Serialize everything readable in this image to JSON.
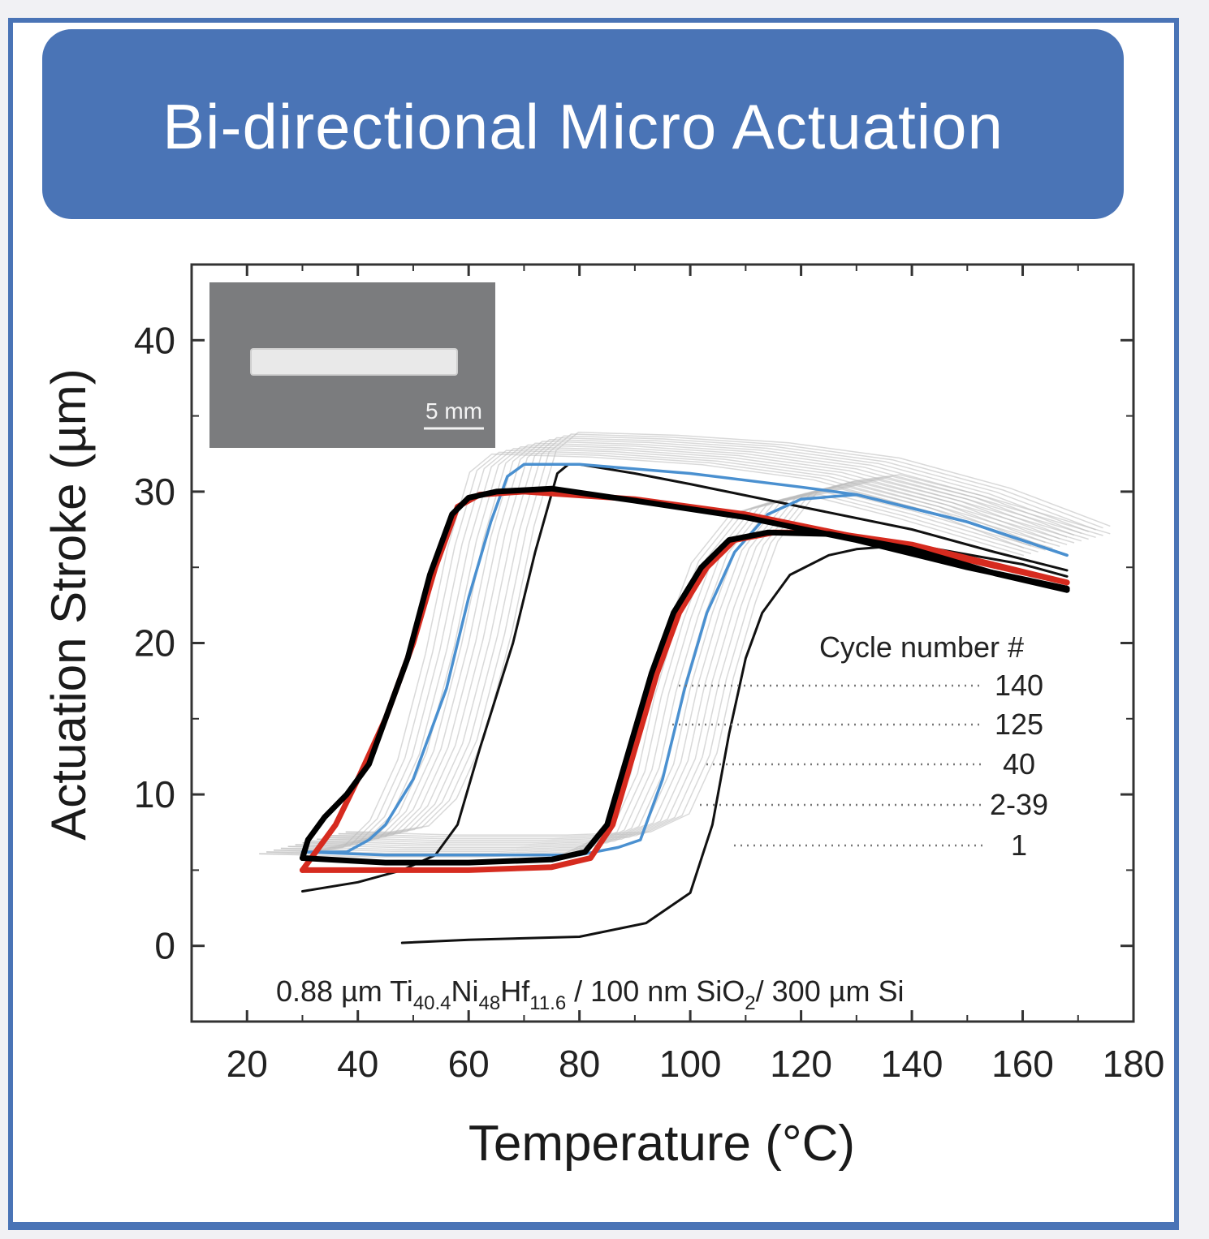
{
  "banner": {
    "title": "Bi-directional Micro Actuation"
  },
  "chart_data": {
    "type": "line",
    "title": "Bi-directional Micro Actuation",
    "xlabel": "Temperature (°C)",
    "ylabel": "Actuation Stroke (µm)",
    "xlim": [
      10,
      180
    ],
    "ylim": [
      -5,
      45
    ],
    "xticks": [
      20,
      40,
      60,
      80,
      100,
      120,
      140,
      160,
      180
    ],
    "yticks": [
      0,
      10,
      20,
      30,
      40
    ],
    "grid": false,
    "annotation": {
      "parts": [
        "0.88 µm Ti",
        "40.4",
        "Ni",
        "48",
        "Hf",
        "11.6",
        " / 100 nm SiO",
        "2",
        "/ 300 µm Si"
      ]
    },
    "legend": {
      "title": "Cycle number #",
      "position": "right",
      "entries": [
        "140",
        "125",
        "40",
        "2-39",
        "1"
      ]
    },
    "inset": {
      "scale_label": "5 mm"
    },
    "series": [
      {
        "name": "1",
        "color": "#111111",
        "heating": [
          [
            48,
            0.2
          ],
          [
            60,
            0.4
          ],
          [
            80,
            0.6
          ],
          [
            92,
            1.5
          ],
          [
            100,
            3.5
          ],
          [
            104,
            8
          ],
          [
            107,
            14
          ],
          [
            110,
            19
          ],
          [
            113,
            22
          ],
          [
            118,
            24.5
          ],
          [
            125,
            25.8
          ],
          [
            130,
            26.2
          ],
          [
            140,
            26.5
          ],
          [
            160,
            25.2
          ],
          [
            168,
            24.4
          ]
        ],
        "cooling": [
          [
            168,
            24.8
          ],
          [
            155,
            26
          ],
          [
            140,
            27.5
          ],
          [
            120,
            29
          ],
          [
            100,
            30.5
          ],
          [
            90,
            31.2
          ],
          [
            80,
            31.8
          ],
          [
            78,
            31.8
          ],
          [
            76,
            31.2
          ],
          [
            72,
            26
          ],
          [
            68,
            20
          ],
          [
            62,
            13
          ],
          [
            58,
            8
          ],
          [
            54,
            6
          ],
          [
            48,
            5
          ],
          [
            40,
            4.2
          ],
          [
            30,
            3.6
          ]
        ]
      },
      {
        "name": "2-39",
        "color": "#b9b9b9",
        "heating": [
          [
            30,
            6.8
          ],
          [
            50,
            6.6
          ],
          [
            70,
            6.6
          ],
          [
            85,
            6.8
          ],
          [
            92,
            8
          ],
          [
            97,
            12
          ],
          [
            100,
            17
          ],
          [
            104,
            22
          ],
          [
            108,
            26
          ],
          [
            115,
            29.2
          ],
          [
            122,
            30
          ],
          [
            130,
            30.4
          ],
          [
            145,
            29
          ],
          [
            168,
            26.5
          ]
        ],
        "cooling": [
          [
            168,
            27
          ],
          [
            150,
            29.5
          ],
          [
            130,
            31.5
          ],
          [
            110,
            32.5
          ],
          [
            90,
            33
          ],
          [
            72,
            33.2
          ],
          [
            68,
            32
          ],
          [
            64,
            27
          ],
          [
            60,
            20
          ],
          [
            55,
            13
          ],
          [
            50,
            9
          ],
          [
            45,
            7.2
          ],
          [
            38,
            6.8
          ],
          [
            30,
            6.8
          ]
        ]
      },
      {
        "name": "40",
        "color": "#4a90d0",
        "heating": [
          [
            30,
            6.2
          ],
          [
            45,
            6
          ],
          [
            60,
            6
          ],
          [
            80,
            6
          ],
          [
            87,
            6.5
          ],
          [
            91,
            7
          ],
          [
            95,
            11
          ],
          [
            99,
            17
          ],
          [
            103,
            22
          ],
          [
            108,
            26
          ],
          [
            114,
            28.5
          ],
          [
            120,
            29.5
          ],
          [
            130,
            29.8
          ],
          [
            150,
            28
          ],
          [
            168,
            25.8
          ]
        ],
        "cooling": [
          [
            168,
            25.8
          ],
          [
            150,
            28
          ],
          [
            130,
            29.8
          ],
          [
            120,
            30.3
          ],
          [
            100,
            31.2
          ],
          [
            80,
            31.8
          ],
          [
            70,
            31.8
          ],
          [
            67,
            31
          ],
          [
            64,
            28
          ],
          [
            60,
            23
          ],
          [
            56,
            17
          ],
          [
            50,
            11
          ],
          [
            45,
            8
          ],
          [
            42,
            7
          ],
          [
            38,
            6.2
          ],
          [
            30,
            6.2
          ]
        ]
      },
      {
        "name": "125",
        "color": "#d62b1f",
        "heating": [
          [
            30,
            5
          ],
          [
            45,
            5
          ],
          [
            60,
            5
          ],
          [
            75,
            5.2
          ],
          [
            82,
            5.8
          ],
          [
            86,
            8
          ],
          [
            90,
            13
          ],
          [
            94,
            18
          ],
          [
            98,
            22
          ],
          [
            103,
            25
          ],
          [
            108,
            26.8
          ],
          [
            115,
            27.3
          ],
          [
            125,
            27.3
          ],
          [
            140,
            26.5
          ],
          [
            168,
            24
          ]
        ],
        "cooling": [
          [
            168,
            24
          ],
          [
            150,
            25.5
          ],
          [
            130,
            27
          ],
          [
            110,
            28.5
          ],
          [
            90,
            29.5
          ],
          [
            70,
            30
          ],
          [
            62,
            29.8
          ],
          [
            58,
            29
          ],
          [
            54,
            25
          ],
          [
            50,
            20
          ],
          [
            45,
            15
          ],
          [
            40,
            11
          ],
          [
            36,
            8
          ],
          [
            32,
            6
          ],
          [
            30,
            5
          ]
        ]
      },
      {
        "name": "140",
        "color": "#000000",
        "heating": [
          [
            30,
            5.8
          ],
          [
            45,
            5.5
          ],
          [
            60,
            5.5
          ],
          [
            75,
            5.7
          ],
          [
            81,
            6.2
          ],
          [
            85,
            8
          ],
          [
            89,
            13
          ],
          [
            93,
            18
          ],
          [
            97,
            22
          ],
          [
            102,
            25
          ],
          [
            107,
            26.8
          ],
          [
            114,
            27.3
          ],
          [
            125,
            27.2
          ],
          [
            140,
            26.2
          ],
          [
            155,
            24.6
          ],
          [
            168,
            23.5
          ]
        ],
        "cooling": [
          [
            168,
            23.6
          ],
          [
            150,
            25
          ],
          [
            130,
            26.8
          ],
          [
            110,
            28.3
          ],
          [
            90,
            29.4
          ],
          [
            75,
            30.2
          ],
          [
            65,
            30
          ],
          [
            60,
            29.6
          ],
          [
            57,
            28.5
          ],
          [
            53,
            24.5
          ],
          [
            49,
            19
          ],
          [
            45,
            15
          ],
          [
            42,
            12
          ],
          [
            38,
            10
          ],
          [
            34,
            8.5
          ],
          [
            31,
            7
          ],
          [
            30,
            5.8
          ]
        ]
      }
    ]
  }
}
